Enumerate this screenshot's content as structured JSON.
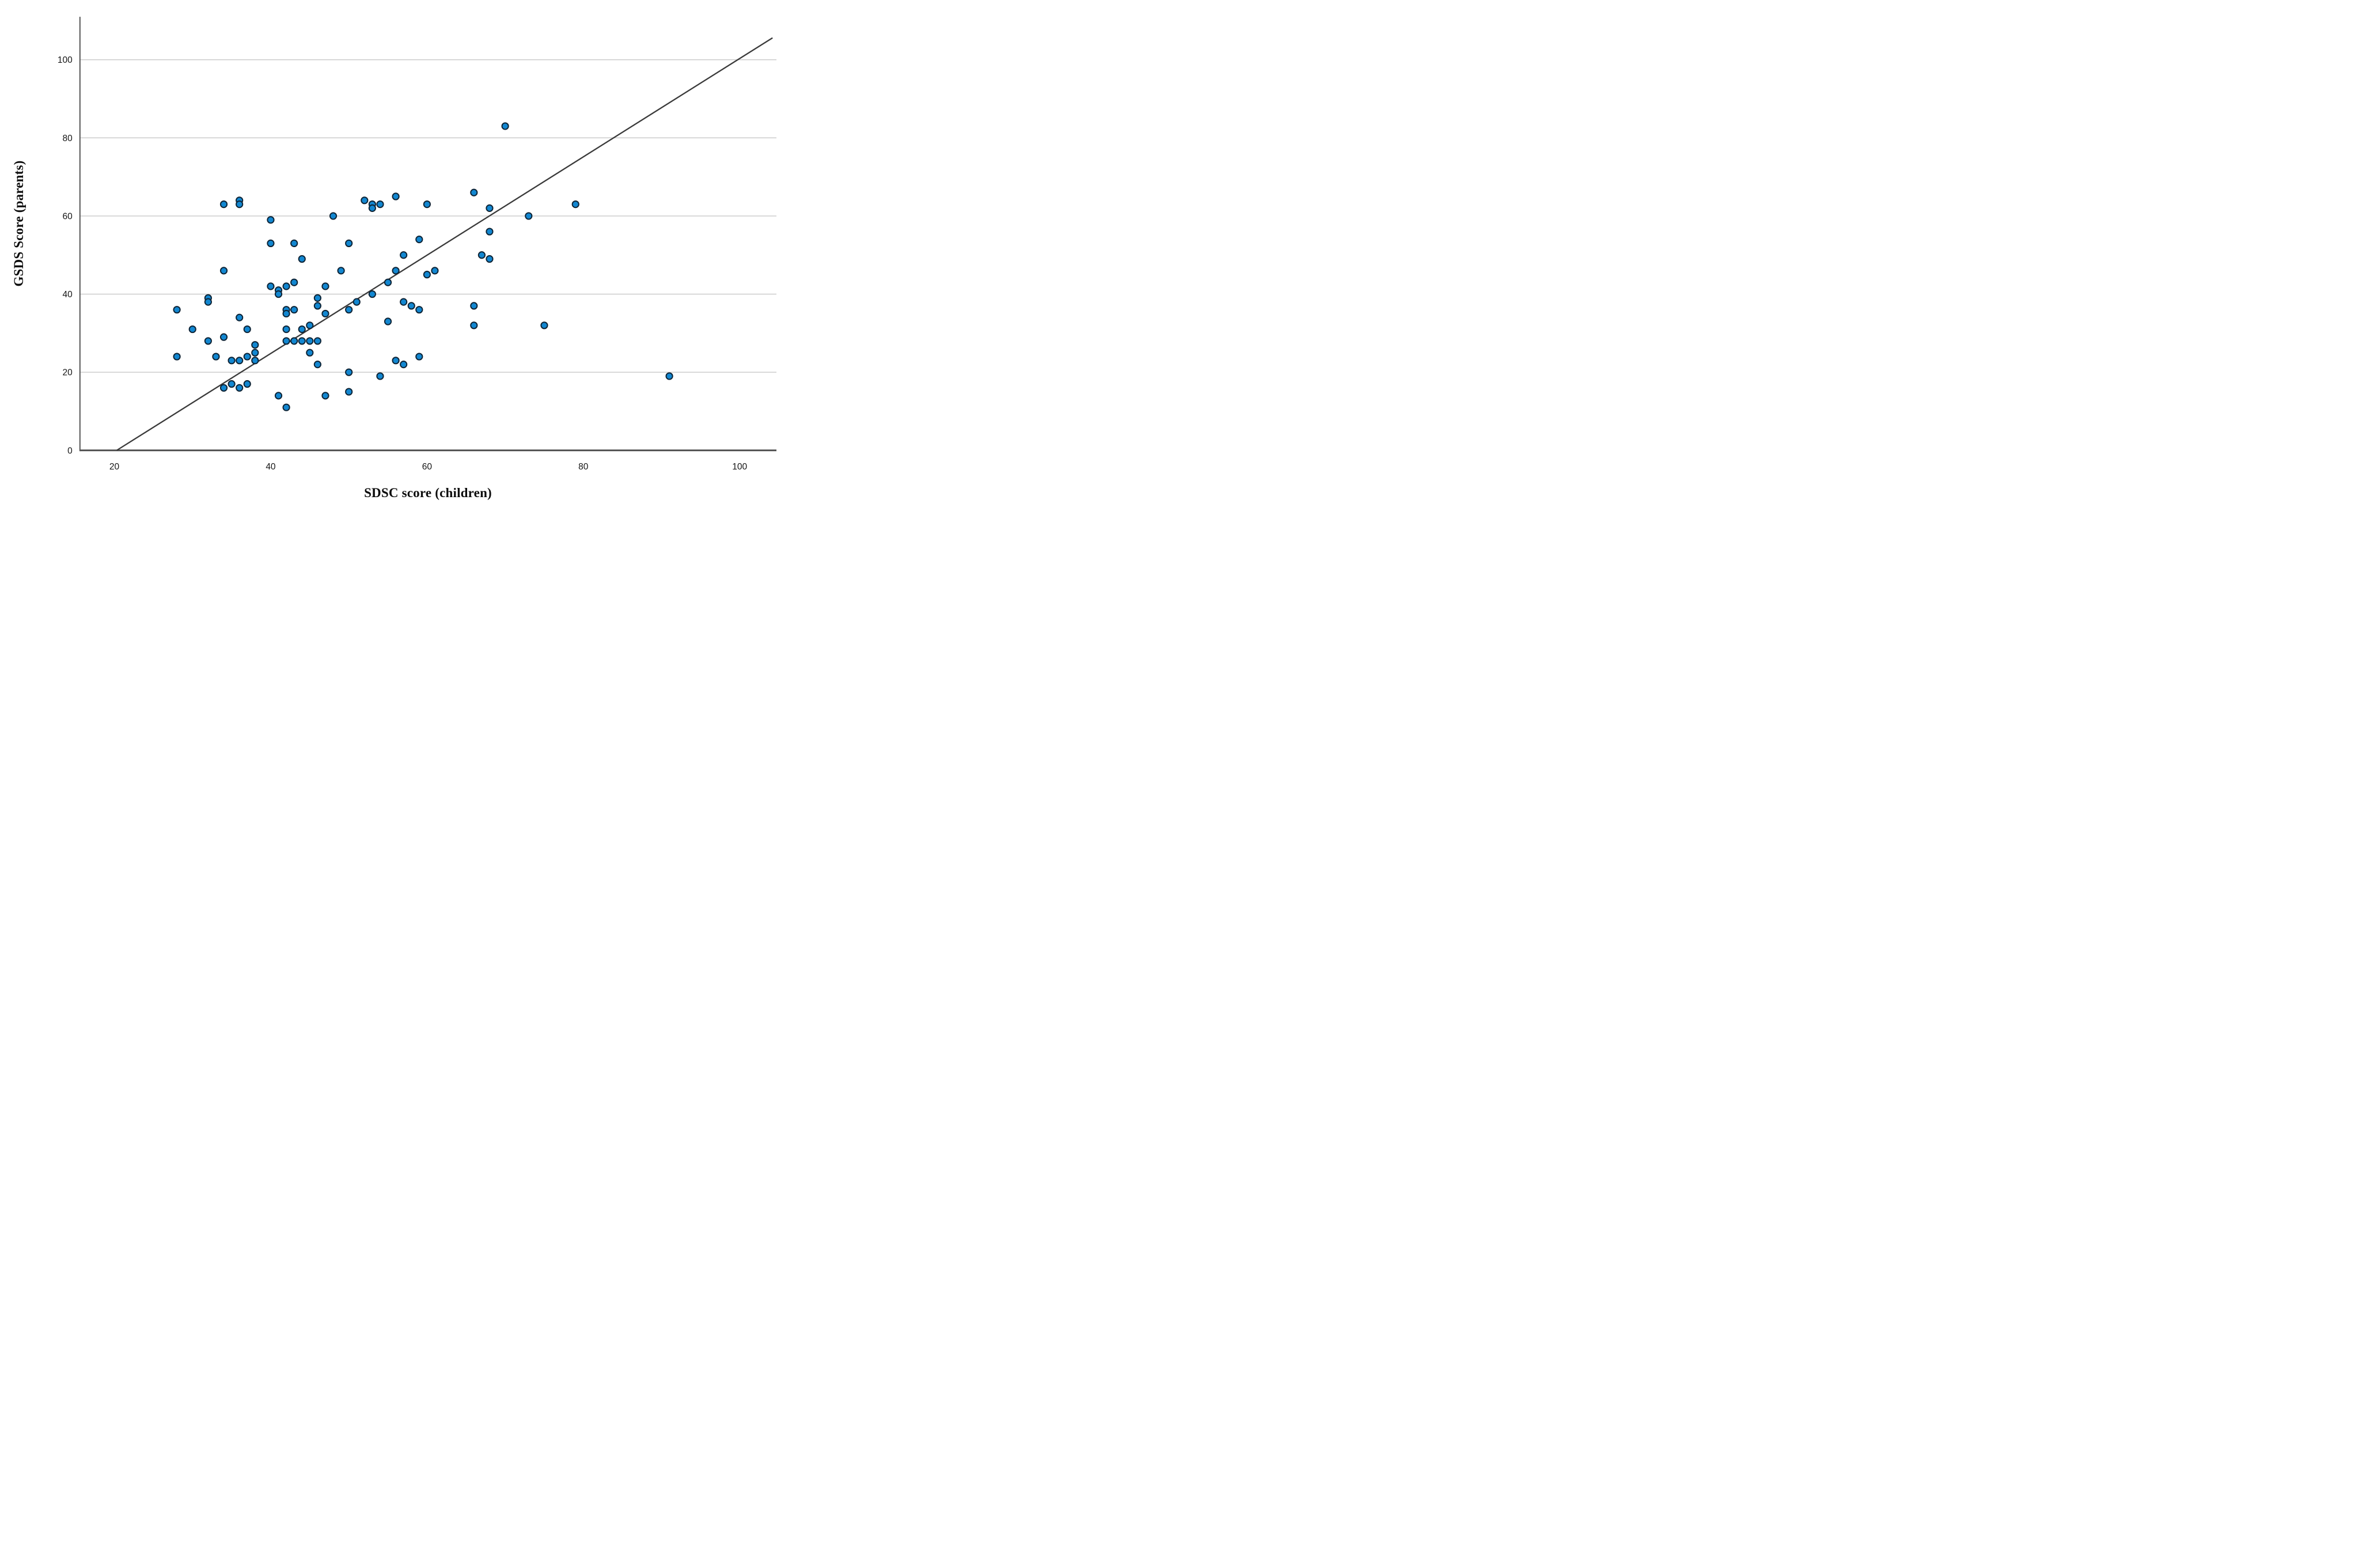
{
  "figure": {
    "background": "#ffffff"
  },
  "chart_data": {
    "type": "scatter",
    "title": "",
    "xlabel": "SDSC score (children)",
    "ylabel": "GSDS Score (parents)",
    "x_ticks": [
      20,
      40,
      60,
      80,
      100
    ],
    "y_ticks": [
      0,
      20,
      40,
      60,
      80,
      100
    ],
    "xlim": [
      15.6,
      104.7
    ],
    "ylim": [
      0,
      111
    ],
    "grid": "horizontal-only",
    "legend_position": "none",
    "colors": {
      "marker_fill": "#1287d1",
      "marker_stroke": "#0e2436",
      "fit_line": "#3a3a3a",
      "gridline": "#c8c8c8",
      "x_axis": "#4b4b4b",
      "y_axis": "#555555",
      "tick_label": "#141414"
    },
    "fit_line": {
      "x1": 20.3,
      "y1": 0,
      "x2": 104.2,
      "y2": 105.6
    },
    "points": [
      [
        34,
        63
      ],
      [
        36,
        64
      ],
      [
        36,
        63
      ],
      [
        40,
        59
      ],
      [
        48,
        60
      ],
      [
        52,
        64
      ],
      [
        53,
        63
      ],
      [
        53,
        62
      ],
      [
        54,
        63
      ],
      [
        56,
        65
      ],
      [
        60,
        63
      ],
      [
        66,
        66
      ],
      [
        68,
        62
      ],
      [
        70,
        83
      ],
      [
        73,
        60
      ],
      [
        79,
        63
      ],
      [
        40,
        53
      ],
      [
        43,
        53
      ],
      [
        44,
        49
      ],
      [
        34,
        46
      ],
      [
        49,
        46
      ],
      [
        50,
        53
      ],
      [
        57,
        50
      ],
      [
        59,
        54
      ],
      [
        67,
        50
      ],
      [
        68,
        56
      ],
      [
        68,
        49
      ],
      [
        56,
        46
      ],
      [
        60,
        45
      ],
      [
        61,
        46
      ],
      [
        55,
        43
      ],
      [
        53,
        40
      ],
      [
        51,
        38
      ],
      [
        50,
        36
      ],
      [
        55,
        33
      ],
      [
        57,
        38
      ],
      [
        58,
        37
      ],
      [
        59,
        36
      ],
      [
        66,
        37
      ],
      [
        66,
        32
      ],
      [
        75,
        32
      ],
      [
        40,
        42
      ],
      [
        41,
        41
      ],
      [
        41,
        40
      ],
      [
        42,
        42
      ],
      [
        43,
        43
      ],
      [
        47,
        42
      ],
      [
        42,
        36
      ],
      [
        43,
        36
      ],
      [
        42,
        35
      ],
      [
        46,
        39
      ],
      [
        46,
        37
      ],
      [
        47,
        35
      ],
      [
        42,
        31
      ],
      [
        44,
        31
      ],
      [
        45,
        32
      ],
      [
        42,
        28
      ],
      [
        43,
        28
      ],
      [
        44,
        28
      ],
      [
        45,
        28
      ],
      [
        46,
        28
      ],
      [
        45,
        25
      ],
      [
        46,
        22
      ],
      [
        28,
        36
      ],
      [
        32,
        39
      ],
      [
        32,
        38
      ],
      [
        30,
        31
      ],
      [
        28,
        24
      ],
      [
        32,
        28
      ],
      [
        34,
        29
      ],
      [
        36,
        34
      ],
      [
        37,
        31
      ],
      [
        33,
        24
      ],
      [
        35,
        23
      ],
      [
        36,
        23
      ],
      [
        37,
        24
      ],
      [
        38,
        27
      ],
      [
        38,
        25
      ],
      [
        38,
        23
      ],
      [
        34,
        16
      ],
      [
        35,
        17
      ],
      [
        36,
        16
      ],
      [
        37,
        17
      ],
      [
        41,
        14
      ],
      [
        42,
        11
      ],
      [
        47,
        14
      ],
      [
        50,
        20
      ],
      [
        50,
        15
      ],
      [
        54,
        19
      ],
      [
        56,
        23
      ],
      [
        57,
        22
      ],
      [
        59,
        24
      ],
      [
        91,
        19
      ]
    ]
  }
}
